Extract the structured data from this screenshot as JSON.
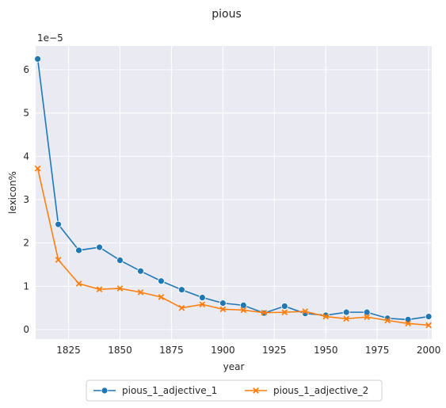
{
  "chart_data": {
    "type": "line",
    "title": "pious",
    "xlabel": "year",
    "ylabel": "lexicon%",
    "y_scale_label": "1e−5",
    "xlim": [
      1809,
      2001.5
    ],
    "ylim": [
      -0.22,
      6.55
    ],
    "x_ticks": [
      1825,
      1850,
      1875,
      1900,
      1925,
      1950,
      1975,
      2000
    ],
    "y_ticks": [
      0,
      1,
      2,
      3,
      4,
      5,
      6
    ],
    "grid": true,
    "legend_position": "bottom-center",
    "x": [
      1810,
      1820,
      1830,
      1840,
      1850,
      1860,
      1870,
      1880,
      1890,
      1900,
      1910,
      1920,
      1930,
      1940,
      1950,
      1960,
      1970,
      1980,
      1990,
      2000
    ],
    "series": [
      {
        "name": "pious_1_adjective_1",
        "color": "#1f77b4",
        "marker": "circle",
        "values": [
          6.25,
          2.43,
          1.83,
          1.9,
          1.6,
          1.35,
          1.12,
          0.92,
          0.74,
          0.61,
          0.56,
          0.38,
          0.54,
          0.37,
          0.33,
          0.4,
          0.4,
          0.26,
          0.23,
          0.3
        ]
      },
      {
        "name": "pious_1_adjective_2",
        "color": "#ff7f0e",
        "marker": "x",
        "values": [
          3.72,
          1.61,
          1.06,
          0.93,
          0.95,
          0.86,
          0.75,
          0.5,
          0.58,
          0.47,
          0.45,
          0.39,
          0.4,
          0.42,
          0.3,
          0.25,
          0.29,
          0.21,
          0.14,
          0.1
        ]
      }
    ]
  }
}
